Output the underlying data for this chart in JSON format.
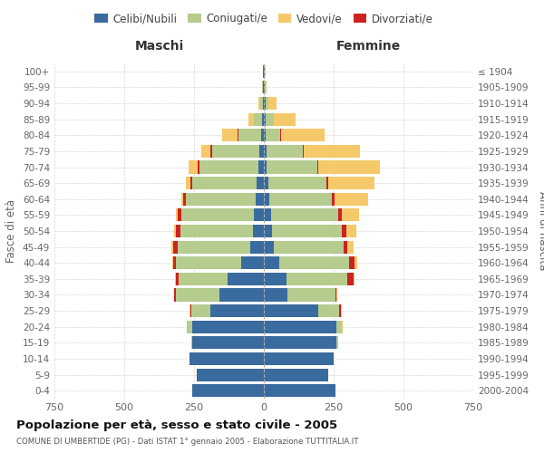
{
  "age_groups": [
    "0-4",
    "5-9",
    "10-14",
    "15-19",
    "20-24",
    "25-29",
    "30-34",
    "35-39",
    "40-44",
    "45-49",
    "50-54",
    "55-59",
    "60-64",
    "65-69",
    "70-74",
    "75-79",
    "80-84",
    "85-89",
    "90-94",
    "95-99",
    "100+"
  ],
  "birth_years": [
    "2000-2004",
    "1995-1999",
    "1990-1994",
    "1985-1989",
    "1980-1984",
    "1975-1979",
    "1970-1974",
    "1965-1969",
    "1960-1964",
    "1955-1959",
    "1950-1954",
    "1945-1949",
    "1940-1944",
    "1935-1939",
    "1930-1934",
    "1925-1929",
    "1920-1924",
    "1915-1919",
    "1910-1914",
    "1905-1909",
    "≤ 1904"
  ],
  "male": {
    "celibi": [
      255,
      240,
      265,
      255,
      255,
      190,
      160,
      130,
      80,
      50,
      40,
      35,
      30,
      25,
      20,
      15,
      10,
      5,
      3,
      2,
      2
    ],
    "coniugati": [
      0,
      0,
      0,
      5,
      20,
      70,
      155,
      175,
      235,
      260,
      260,
      260,
      250,
      230,
      210,
      170,
      80,
      30,
      10,
      3,
      2
    ],
    "vedovi": [
      0,
      0,
      0,
      0,
      0,
      3,
      0,
      3,
      3,
      5,
      5,
      5,
      8,
      15,
      30,
      35,
      55,
      20,
      5,
      0,
      0
    ],
    "divorziati": [
      0,
      0,
      0,
      0,
      0,
      3,
      5,
      10,
      10,
      15,
      15,
      15,
      8,
      8,
      8,
      5,
      3,
      0,
      0,
      0,
      0
    ]
  },
  "female": {
    "nubili": [
      255,
      230,
      250,
      260,
      260,
      195,
      85,
      80,
      55,
      35,
      30,
      25,
      20,
      15,
      10,
      10,
      5,
      5,
      5,
      2,
      2
    ],
    "coniugate": [
      0,
      0,
      0,
      5,
      20,
      75,
      170,
      220,
      250,
      250,
      250,
      240,
      225,
      210,
      180,
      130,
      55,
      30,
      10,
      3,
      2
    ],
    "vedove": [
      0,
      0,
      0,
      0,
      3,
      3,
      3,
      5,
      10,
      20,
      35,
      60,
      120,
      165,
      220,
      200,
      155,
      80,
      30,
      5,
      3
    ],
    "divorziate": [
      0,
      0,
      0,
      0,
      0,
      5,
      5,
      20,
      20,
      15,
      15,
      15,
      8,
      5,
      5,
      3,
      3,
      0,
      0,
      0,
      0
    ]
  },
  "colors": {
    "celibi": "#3a6b9f",
    "coniugati": "#b5cc8e",
    "vedovi": "#f5c96a",
    "divorziati": "#cc2222"
  },
  "title": "Popolazione per età, sesso e stato civile - 2005",
  "subtitle": "COMUNE DI UMBERTIDE (PG) - Dati ISTAT 1° gennaio 2005 - Elaborazione TUTTITALIA.IT",
  "xlabel_left": "Maschi",
  "xlabel_right": "Femmine",
  "ylabel_left": "Fasce di età",
  "ylabel_right": "Anni di nascita",
  "xlim": 750,
  "bg_color": "#ffffff",
  "grid_color": "#cccccc",
  "legend_labels": [
    "Celibi/Nubili",
    "Coniugati/e",
    "Vedovi/e",
    "Divorziati/e"
  ]
}
